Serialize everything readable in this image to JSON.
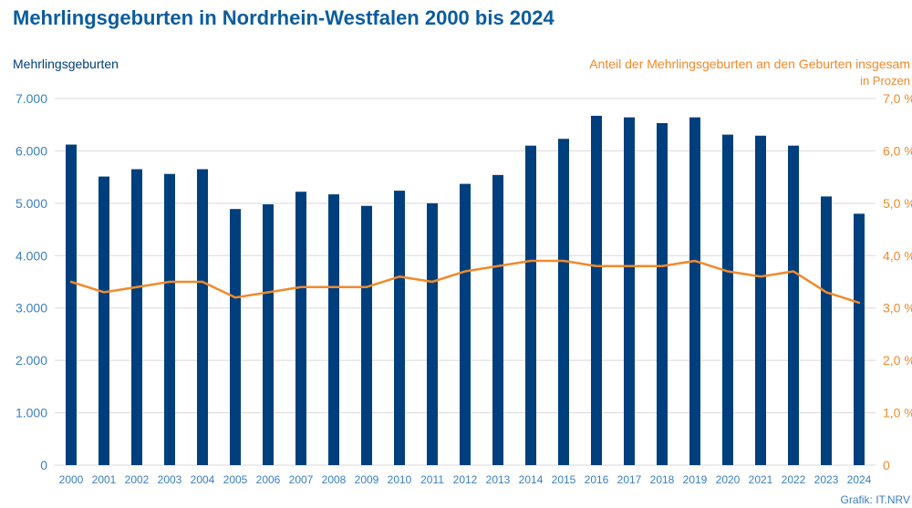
{
  "chart_data": {
    "type": "bar",
    "title": "Mehrlingsgeburten in Nordrhein-Westfalen 2000 bis 2024",
    "ylabel_left": "Mehrlingsgeburten",
    "ylabel_right_line1": "Anteil der Mehrlingsgeburten an den Geburten insgesam",
    "ylabel_right_line2": "in Prozen",
    "source": "Grafik: IT.NRV",
    "categories": [
      "2000",
      "2001",
      "2002",
      "2003",
      "2004",
      "2005",
      "2006",
      "2007",
      "2008",
      "2009",
      "2010",
      "2011",
      "2012",
      "2013",
      "2014",
      "2015",
      "2016",
      "2017",
      "2018",
      "2019",
      "2020",
      "2021",
      "2022",
      "2023",
      "2024"
    ],
    "series": [
      {
        "type": "bar",
        "axis": "left",
        "color": "#003f7d",
        "values": [
          6120,
          5510,
          5650,
          5560,
          5650,
          4890,
          4980,
          5220,
          5170,
          4950,
          5240,
          5000,
          5370,
          5540,
          6100,
          6230,
          6670,
          6640,
          6530,
          6640,
          6310,
          6290,
          6100,
          5130,
          4800
        ]
      },
      {
        "type": "line",
        "axis": "right",
        "color": "#f08a2c",
        "values": [
          3.5,
          3.3,
          3.4,
          3.5,
          3.5,
          3.2,
          3.3,
          3.4,
          3.4,
          3.4,
          3.6,
          3.5,
          3.7,
          3.8,
          3.9,
          3.9,
          3.8,
          3.8,
          3.8,
          3.9,
          3.7,
          3.6,
          3.7,
          3.3,
          3.1
        ]
      }
    ],
    "left_ticks": [
      "0",
      "1.000",
      "2.000",
      "3.000",
      "4.000",
      "5.000",
      "6.000",
      "7.000"
    ],
    "right_ticks": [
      "0",
      "1,0 %",
      "2,0 %",
      "3,0 %",
      "4,0 %",
      "5,0 %",
      "6,0 %",
      "7,0 %"
    ],
    "ylim_left": [
      0,
      7000
    ],
    "ylim_right": [
      0,
      7
    ],
    "grid": true
  },
  "colors": {
    "title": "#0b5c9e",
    "bar": "#003f7d",
    "line": "#f08a2c",
    "tick": "#3a7fc1",
    "grid": "#d9d9d9"
  }
}
